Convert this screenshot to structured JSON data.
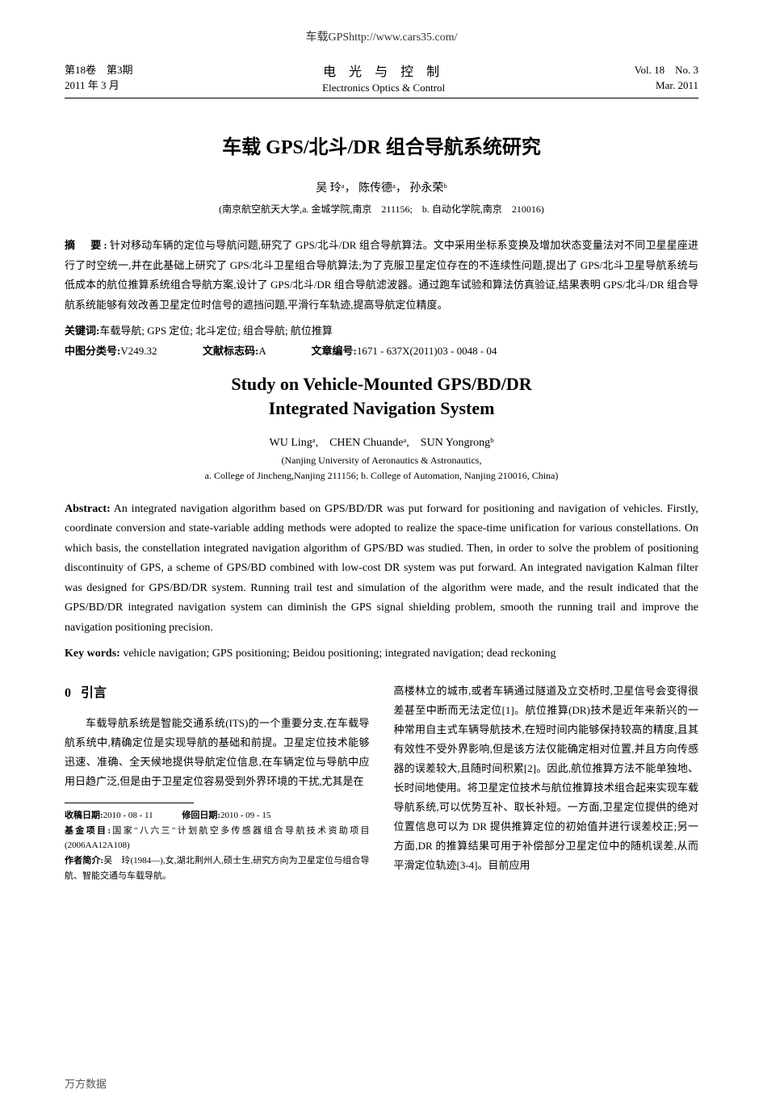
{
  "header_url": "车载GPShttp://www.cars35.com/",
  "journal": {
    "volume": "第18卷",
    "issue": "第3期",
    "date_cn": "2011 年 3 月",
    "title_cn": "电 光 与 控 制",
    "title_en": "Electronics Optics & Control",
    "vol_en": "Vol. 18",
    "no_en": "No. 3",
    "date_en": "Mar. 2011"
  },
  "title_cn": "车载 GPS/北斗/DR 组合导航系统研究",
  "authors_cn": "吴  玲ᵃ，  陈传德ᵃ，  孙永荣ᵇ",
  "affiliation_cn": "(南京航空航天大学,a. 金城学院,南京　211156;　b. 自动化学院,南京　210016)",
  "abstract_cn_label": "摘　要:",
  "abstract_cn": "针对移动车辆的定位与导航问题,研究了 GPS/北斗/DR 组合导航算法。文中采用坐标系变换及增加状态变量法对不同卫星星座进行了时空统一,并在此基础上研究了 GPS/北斗卫星组合导航算法;为了克服卫星定位存在的不连续性问题,提出了 GPS/北斗卫星导航系统与低成本的航位推算系统组合导航方案,设计了 GPS/北斗/DR 组合导航滤波器。通过跑车试验和算法仿真验证,结果表明 GPS/北斗/DR 组合导航系统能够有效改善卫星定位时信号的遮挡问题,平滑行车轨迹,提高导航定位精度。",
  "keywords_cn_label": "关键词:",
  "keywords_cn": "车载导航; GPS 定位; 北斗定位; 组合导航; 航位推算",
  "class_label": "中图分类号:",
  "class_value": "V249.32",
  "doc_code_label": "文献标志码:",
  "doc_code_value": "A",
  "article_id_label": "文章编号:",
  "article_id_value": "1671 - 637X(2011)03 - 0048 - 04",
  "title_en_1": "Study on Vehicle-Mounted GPS/BD/DR",
  "title_en_2": "Integrated Navigation System",
  "authors_en": "WU Lingᵃ,　CHEN Chuandeᵃ,　SUN Yongrongᵇ",
  "affiliation_en_1": "(Nanjing University of Aeronautics & Astronautics,",
  "affiliation_en_2": "a. College of Jincheng,Nanjing 211156; b. College of Automation, Nanjing 210016, China)",
  "abstract_en_label": "Abstract:",
  "abstract_en": "An integrated navigation algorithm based on GPS/BD/DR was put forward for positioning and navigation of vehicles. Firstly, coordinate conversion and state-variable adding methods were adopted to realize the space-time unification for various constellations. On which basis, the constellation integrated navigation algorithm of GPS/BD was studied. Then, in order to solve the problem of positioning discontinuity of GPS, a scheme of GPS/BD combined with low-cost DR system was put forward. An integrated navigation Kalman filter was designed for GPS/BD/DR system. Running trail test and simulation of the algorithm were made, and the result indicated that the GPS/BD/DR integrated navigation system can diminish the GPS signal shielding problem, smooth the running trail and improve the navigation positioning precision.",
  "keywords_en_label": "Key words:",
  "keywords_en": "vehicle navigation; GPS positioning; Beidou positioning; integrated navigation; dead reckoning",
  "section0_num": "0",
  "section0_title": "引言",
  "body_left": "车载导航系统是智能交通系统(ITS)的一个重要分支,在车载导航系统中,精确定位是实现导航的基础和前提。卫星定位技术能够迅速、准确、全天候地提供导航定位信息,在车辆定位与导航中应用日趋广泛,但是由于卫星定位容易受到外界环境的干扰,尤其是在",
  "body_right": "高楼林立的城市,或者车辆通过隧道及立交桥时,卫星信号会变得很差甚至中断而无法定位[1]。航位推算(DR)技术是近年来新兴的一种常用自主式车辆导航技术,在短时间内能够保持较高的精度,且其有效性不受外界影响,但是该方法仅能确定相对位置,并且方向传感器的误差较大,且随时间积累[2]。因此,航位推算方法不能单独地、长时间地使用。将卫星定位技术与航位推算技术组合起来实现车载导航系统,可以优势互补、取长补短。一方面,卫星定位提供的绝对位置信息可以为 DR 提供推算定位的初始值并进行误差校正;另一方面,DR 的推算结果可用于补偿部分卫星定位中的随机误差,从而平滑定位轨迹[3-4]。目前应用",
  "footnote_received_label": "收稿日期:",
  "footnote_received": "2010 - 08 - 11",
  "footnote_revised_label": "修回日期:",
  "footnote_revised": "2010 - 09 - 15",
  "footnote_fund_label": "基金项目:",
  "footnote_fund": "国家\"八六三\"计划航空多传感器组合导航技术资助项目(2006AA12A108)",
  "footnote_author_label": "作者简介:",
  "footnote_author": "吴　玲(1984—),女,湖北荆州人,硕士生,研究方向为卫星定位与组合导航、智能交通与车载导航。",
  "footer_db": "万方数据"
}
